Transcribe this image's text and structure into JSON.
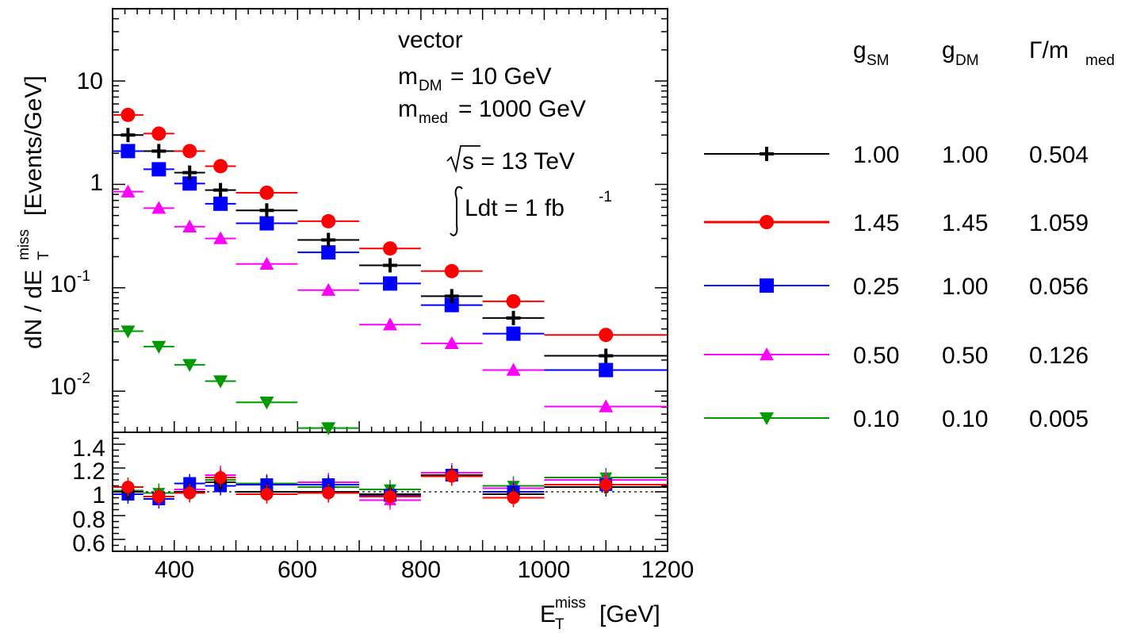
{
  "chart_data": {
    "type": "scatter",
    "x_axis": {
      "label_main": "E",
      "label_sub": "T",
      "label_sup": "miss",
      "label_unit": "[GeV]",
      "range": [
        300,
        1200
      ],
      "ticks": [
        "400",
        "600",
        "800",
        "1000",
        "1200"
      ]
    },
    "y_axis": {
      "label_pre": "dN / dE",
      "label_sub": "T",
      "label_sup": "miss",
      "label_unit": "[Events/GeV]",
      "scale": "log",
      "range": [
        0.004,
        50
      ],
      "tick_labels": {
        "ten": "10",
        "one": "1",
        "tenth": "10",
        "tenth_exp": "-1",
        "hundredth": "10",
        "hundredth_exp": "-2"
      }
    },
    "ratio_axis": {
      "range": [
        0.5,
        1.5
      ],
      "ticks": [
        "0.6",
        "0.8",
        "1",
        "1.2",
        "1.4"
      ],
      "reference": 1
    },
    "annotations": {
      "model": "vector",
      "mdm_pre": "m",
      "mdm_sub": "DM",
      "mdm_val": "= 10 GeV",
      "mmed_pre": "m",
      "mmed_sub": "med",
      "mmed_val": "= 1000 GeV",
      "sqrt_s": "s = 13 TeV",
      "lumi_pre": "Ldt = 1 fb",
      "lumi_sup": "-1"
    },
    "legend": {
      "placement": "right",
      "headers": [
        {
          "main": "g",
          "sub": "SM"
        },
        {
          "main": "g",
          "sub": "DM"
        },
        {
          "main": "Γ/m",
          "sub": "med"
        }
      ]
    },
    "bins": [
      [
        300,
        350
      ],
      [
        350,
        400
      ],
      [
        400,
        450
      ],
      [
        450,
        500
      ],
      [
        500,
        600
      ],
      [
        600,
        700
      ],
      [
        700,
        800
      ],
      [
        800,
        900
      ],
      [
        900,
        1000
      ],
      [
        1000,
        1200
      ]
    ],
    "series": [
      {
        "marker": "cross",
        "color": "#000000",
        "gsm": "1.00",
        "gdm": "1.00",
        "width": "0.504",
        "values": [
          3.0,
          2.1,
          1.3,
          0.88,
          0.56,
          0.29,
          0.165,
          0.083,
          0.051,
          0.022
        ],
        "ratio": [
          1.0,
          0.96,
          1.0,
          1.08,
          1.0,
          1.0,
          0.98,
          1.14,
          0.98,
          1.04
        ]
      },
      {
        "marker": "circle",
        "color": "#ff0000",
        "gsm": "1.45",
        "gdm": "1.45",
        "width": "1.059",
        "values": [
          4.7,
          3.1,
          2.1,
          1.5,
          0.83,
          0.44,
          0.24,
          0.145,
          0.074,
          0.035
        ],
        "ratio": [
          1.04,
          0.96,
          0.99,
          1.12,
          0.98,
          0.99,
          0.96,
          1.13,
          0.95,
          1.06
        ]
      },
      {
        "marker": "square",
        "color": "#0000ff",
        "gsm": "0.25",
        "gdm": "1.00",
        "width": "0.056",
        "values": [
          2.1,
          1.4,
          1.02,
          0.65,
          0.42,
          0.22,
          0.11,
          0.068,
          0.036,
          0.016
        ],
        "ratio": [
          0.98,
          0.94,
          1.07,
          1.05,
          1.06,
          1.06,
          0.97,
          1.14,
          1.0,
          1.06
        ]
      },
      {
        "marker": "triangle-up",
        "color": "#ff00ff",
        "gsm": "0.50",
        "gdm": "0.50",
        "width": "0.126",
        "values": [
          0.85,
          0.59,
          0.39,
          0.3,
          0.17,
          0.095,
          0.044,
          0.029,
          0.016,
          0.0071
        ],
        "ratio": [
          1.0,
          0.96,
          1.02,
          1.14,
          1.06,
          1.08,
          0.93,
          1.16,
          1.03,
          1.1
        ]
      },
      {
        "marker": "triangle-down",
        "color": "#009900",
        "gsm": "0.10",
        "gdm": "0.10",
        "width": "0.005",
        "values": [
          0.038,
          0.027,
          0.018,
          0.0125,
          0.0078,
          0.0044,
          null,
          null,
          null,
          null
        ],
        "ratio": [
          1.01,
          0.99,
          1.02,
          1.1,
          1.07,
          1.04,
          1.02,
          1.14,
          1.05,
          1.12
        ]
      }
    ]
  }
}
